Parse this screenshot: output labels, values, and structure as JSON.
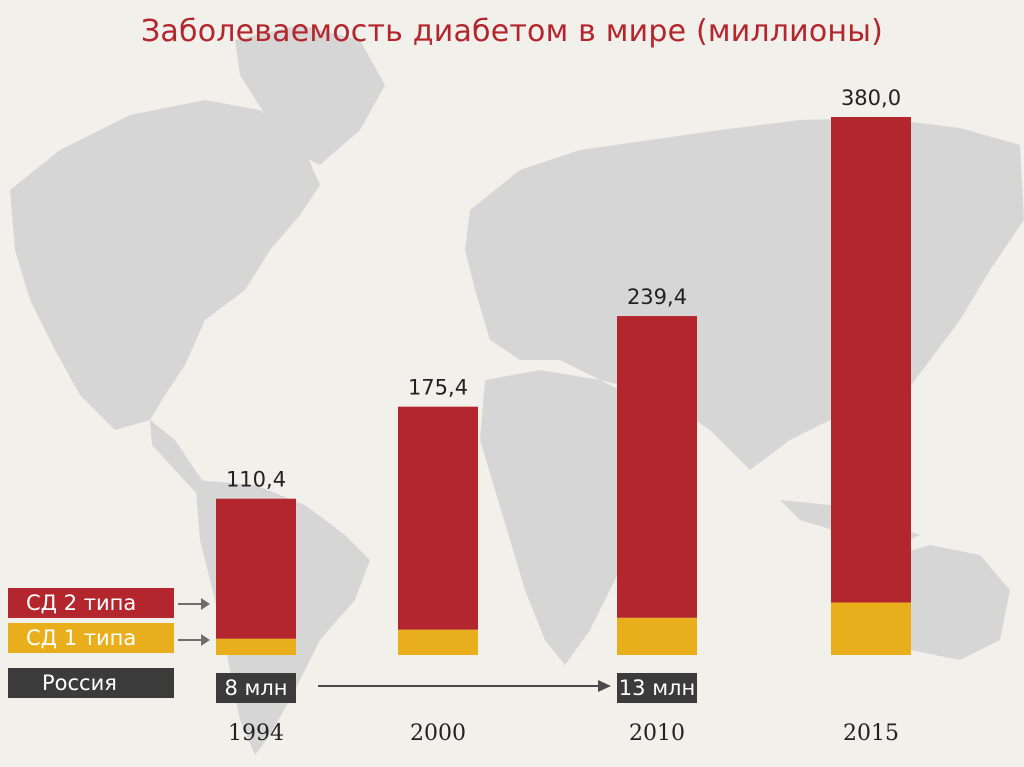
{
  "title": "Заболеваемость диабетом в мире (миллионы)",
  "colors": {
    "type2": "#b3262d",
    "type1": "#e9ae1c",
    "russia": "#3b3b3b",
    "title": "#b3262d",
    "map": "#d6d6d6",
    "background": "#f2f0ea"
  },
  "legend": {
    "type2_label": "СД 2 типа",
    "type1_label": "СД 1 типа",
    "russia_label": "Россия"
  },
  "russia": {
    "start_label": "8 млн",
    "end_label": "13 млн",
    "start_year": "1994",
    "end_year": "2010"
  },
  "chart_data": {
    "type": "bar",
    "stacked": true,
    "title": "Заболеваемость диабетом в мире (миллионы)",
    "categories": [
      "1994",
      "2000",
      "2010",
      "2015"
    ],
    "totals": [
      110.4,
      175.4,
      239.4,
      380.0
    ],
    "total_labels": [
      "110,4",
      "175,4",
      "239,4",
      "380,0"
    ],
    "series": [
      {
        "name": "СД 1 типа",
        "values": [
          11.5,
          17.9,
          26.3,
          37.1
        ]
      },
      {
        "name": "СД 2 типа",
        "values": [
          98.9,
          157.5,
          213.1,
          342.9
        ]
      }
    ],
    "ylim": [
      0,
      400
    ],
    "grid": false,
    "legend_position": "left"
  }
}
